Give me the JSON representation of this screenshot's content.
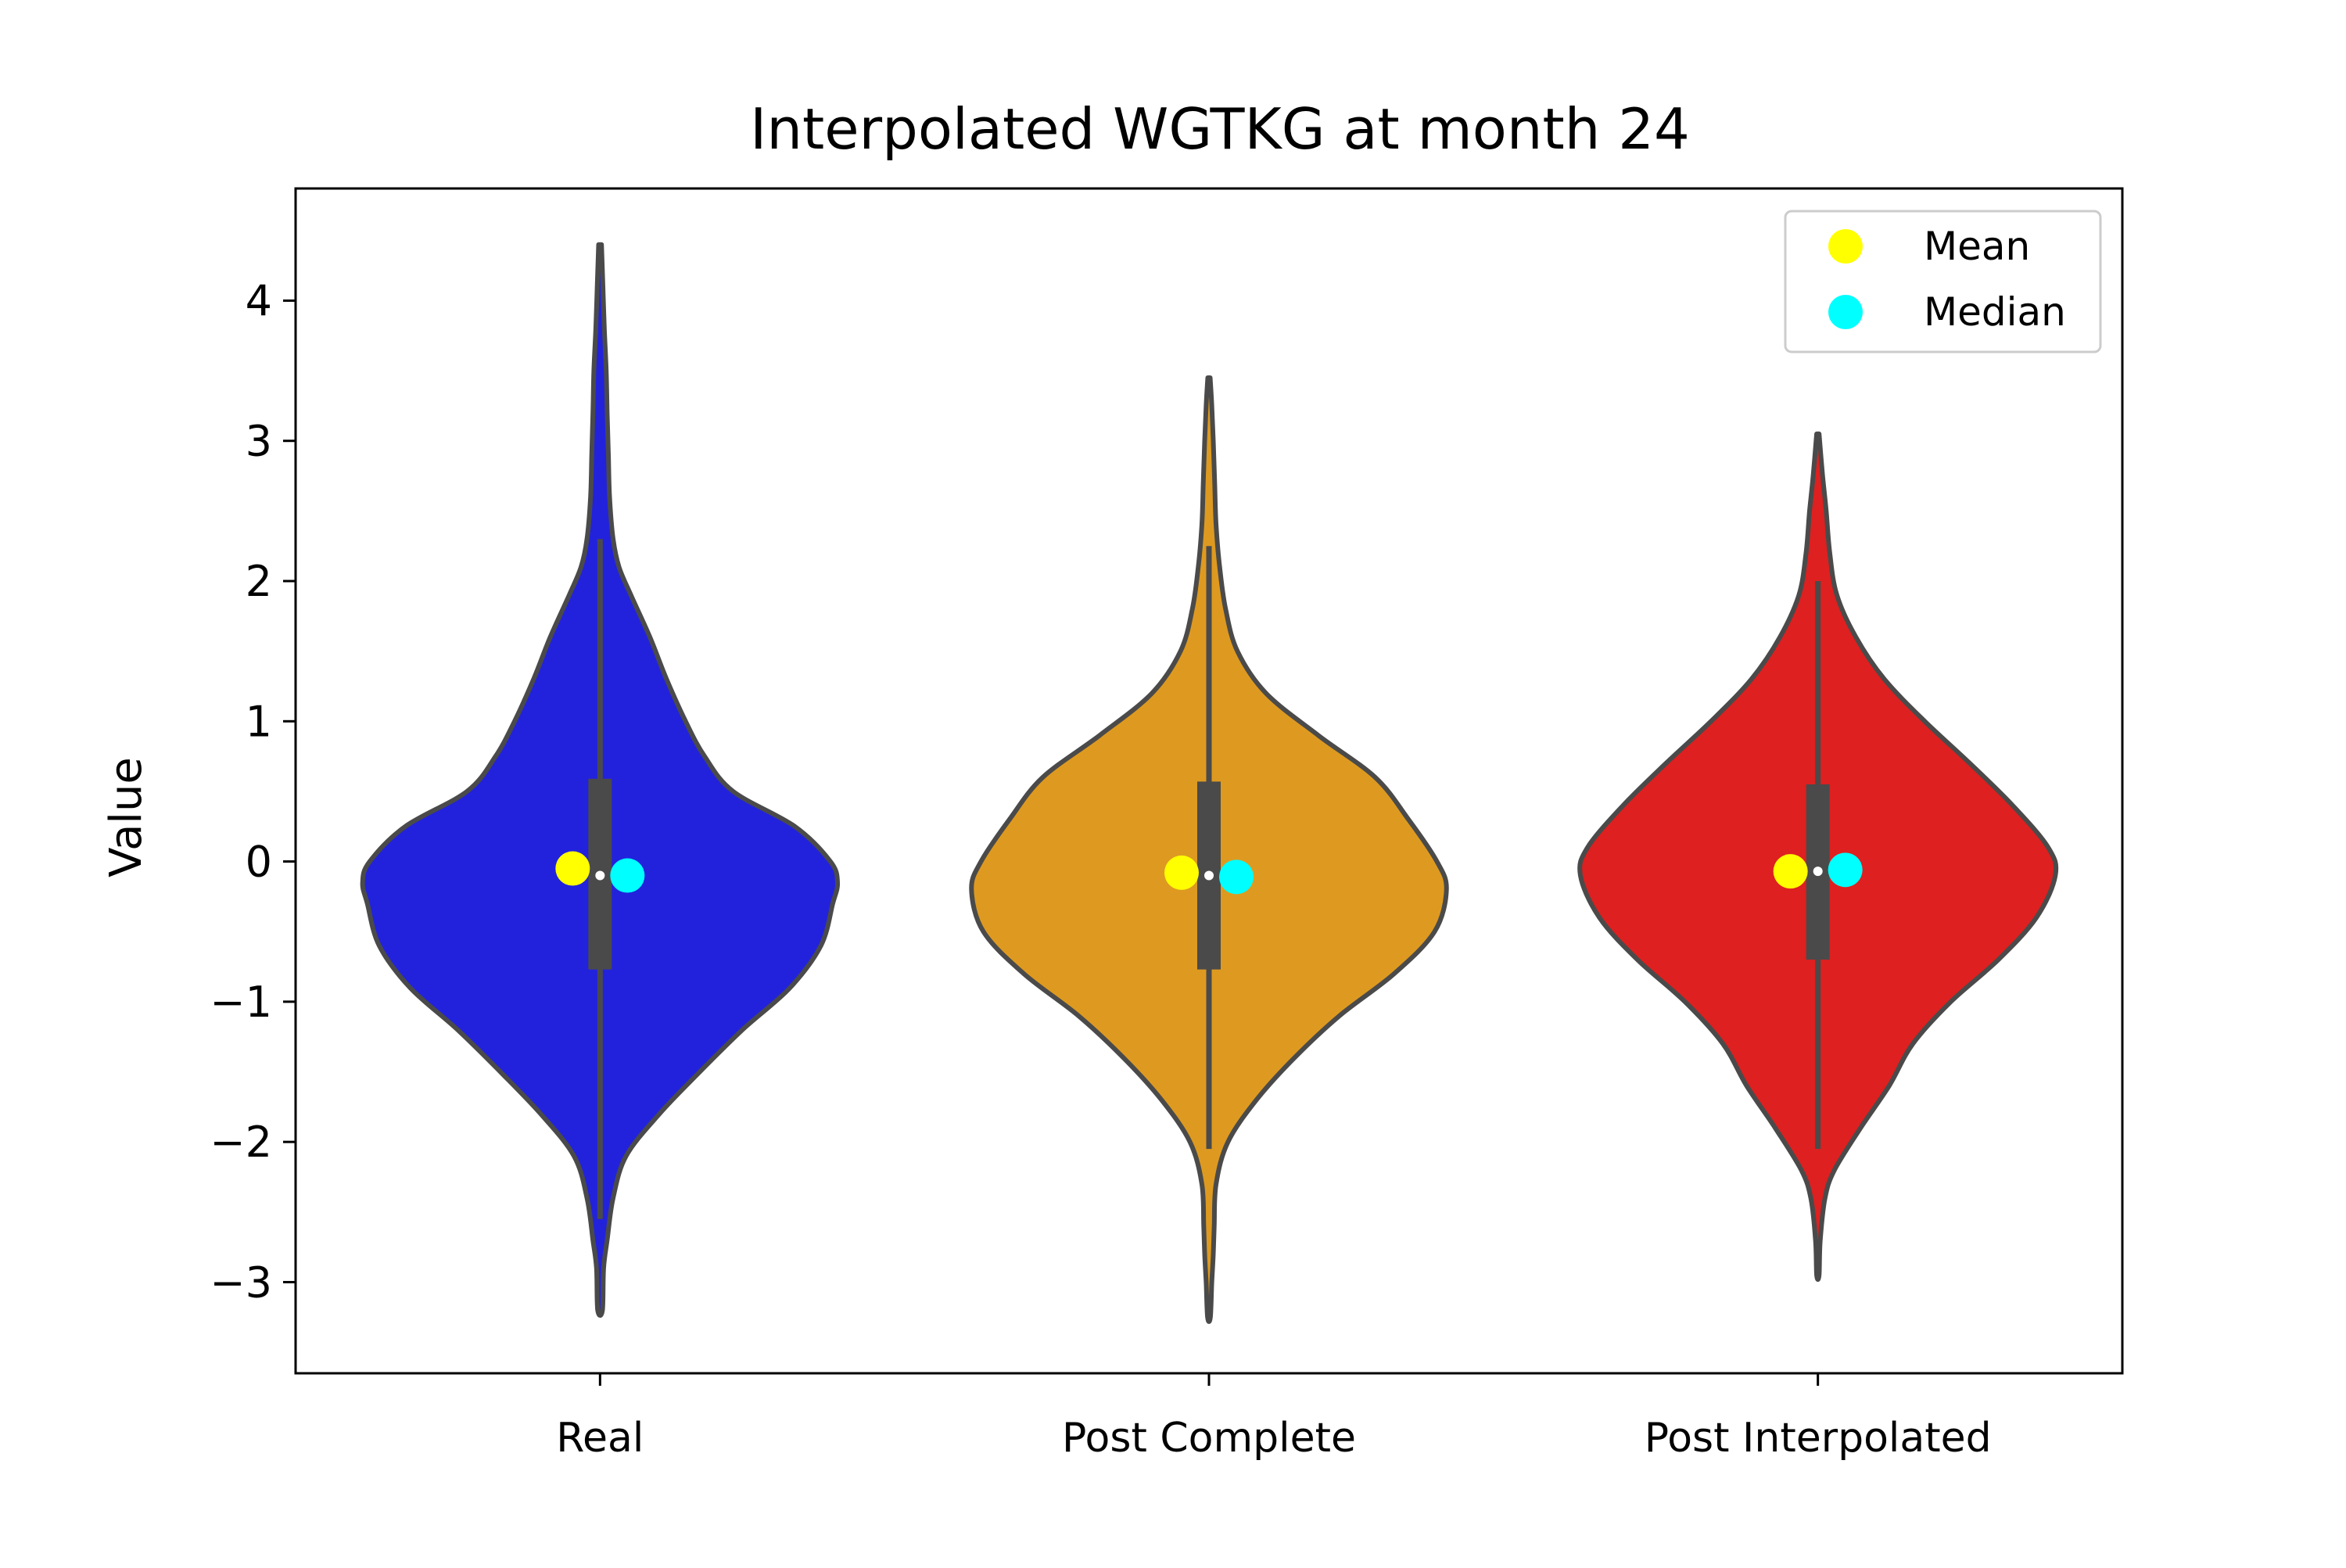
{
  "chart_data": {
    "type": "violin",
    "title": "Interpolated WGTKG at month 24",
    "xlabel": "",
    "ylabel": "Value",
    "ylim": [
      -3.65,
      4.8
    ],
    "yticks": [
      -3,
      -2,
      -1,
      0,
      1,
      2,
      3,
      4
    ],
    "ytick_labels": [
      "−3",
      "−2",
      "−1",
      "0",
      "1",
      "2",
      "3",
      "4"
    ],
    "categories": [
      "Real",
      "Post Complete",
      "Post Interpolated"
    ],
    "colors": [
      "#2222dd",
      "#de9a20",
      "#de2020"
    ],
    "series": [
      {
        "category": "Real",
        "color": "#2222dd",
        "min": -3.2,
        "q1": -0.77,
        "median": -0.1,
        "q3": 0.59,
        "max": 4.4,
        "whisker_low": -2.55,
        "whisker_high": 2.3,
        "mean": -0.05,
        "median_marker": -0.1,
        "density": [
          [
            -3.2,
            0.01
          ],
          [
            -2.9,
            0.015
          ],
          [
            -2.7,
            0.03
          ],
          [
            -2.4,
            0.055
          ],
          [
            -2.1,
            0.11
          ],
          [
            -1.8,
            0.25
          ],
          [
            -1.5,
            0.42
          ],
          [
            -1.2,
            0.6
          ],
          [
            -0.9,
            0.8
          ],
          [
            -0.6,
            0.93
          ],
          [
            -0.3,
            0.98
          ],
          [
            -0.15,
            1.0
          ],
          [
            0.0,
            0.97
          ],
          [
            0.25,
            0.82
          ],
          [
            0.5,
            0.56
          ],
          [
            0.75,
            0.44
          ],
          [
            1.0,
            0.36
          ],
          [
            1.3,
            0.28
          ],
          [
            1.6,
            0.21
          ],
          [
            1.9,
            0.13
          ],
          [
            2.1,
            0.08
          ],
          [
            2.3,
            0.055
          ],
          [
            2.6,
            0.04
          ],
          [
            2.9,
            0.035
          ],
          [
            3.2,
            0.03
          ],
          [
            3.5,
            0.026
          ],
          [
            3.8,
            0.018
          ],
          [
            4.1,
            0.012
          ],
          [
            4.4,
            0.006
          ]
        ]
      },
      {
        "category": "Post Complete",
        "color": "#de9a20",
        "min": -3.25,
        "q1": -0.77,
        "median": -0.1,
        "q3": 0.57,
        "max": 3.45,
        "whisker_low": -2.05,
        "whisker_high": 2.25,
        "mean": -0.08,
        "median_marker": -0.11,
        "density": [
          [
            -3.25,
            0.006
          ],
          [
            -3.0,
            0.012
          ],
          [
            -2.8,
            0.018
          ],
          [
            -2.6,
            0.022
          ],
          [
            -2.3,
            0.03
          ],
          [
            -2.0,
            0.08
          ],
          [
            -1.7,
            0.2
          ],
          [
            -1.4,
            0.36
          ],
          [
            -1.1,
            0.55
          ],
          [
            -0.8,
            0.78
          ],
          [
            -0.5,
            0.95
          ],
          [
            -0.2,
            1.0
          ],
          [
            0.0,
            0.96
          ],
          [
            0.3,
            0.84
          ],
          [
            0.6,
            0.7
          ],
          [
            0.9,
            0.46
          ],
          [
            1.2,
            0.24
          ],
          [
            1.5,
            0.12
          ],
          [
            1.8,
            0.07
          ],
          [
            2.1,
            0.045
          ],
          [
            2.4,
            0.03
          ],
          [
            2.7,
            0.024
          ],
          [
            3.0,
            0.018
          ],
          [
            3.25,
            0.012
          ],
          [
            3.45,
            0.005
          ]
        ]
      },
      {
        "category": "Post Interpolated",
        "color": "#de2020",
        "min": -2.95,
        "q1": -0.7,
        "median": -0.07,
        "q3": 0.55,
        "max": 3.05,
        "whisker_low": -2.05,
        "whisker_high": 2.0,
        "mean": -0.07,
        "median_marker": -0.06,
        "density": [
          [
            -2.95,
            0.005
          ],
          [
            -2.7,
            0.01
          ],
          [
            -2.4,
            0.03
          ],
          [
            -2.2,
            0.07
          ],
          [
            -1.9,
            0.18
          ],
          [
            -1.6,
            0.3
          ],
          [
            -1.3,
            0.4
          ],
          [
            -1.0,
            0.56
          ],
          [
            -0.7,
            0.76
          ],
          [
            -0.4,
            0.92
          ],
          [
            -0.1,
            1.0
          ],
          [
            0.1,
            0.97
          ],
          [
            0.4,
            0.82
          ],
          [
            0.7,
            0.64
          ],
          [
            1.0,
            0.45
          ],
          [
            1.3,
            0.28
          ],
          [
            1.6,
            0.16
          ],
          [
            1.9,
            0.08
          ],
          [
            2.2,
            0.05
          ],
          [
            2.5,
            0.035
          ],
          [
            2.75,
            0.02
          ],
          [
            3.05,
            0.005
          ]
        ]
      }
    ],
    "legend": {
      "position": "top-right",
      "entries": [
        {
          "label": "Mean",
          "color": "#ffff00"
        },
        {
          "label": "Median",
          "color": "#00ffff"
        }
      ]
    },
    "grid": false
  }
}
